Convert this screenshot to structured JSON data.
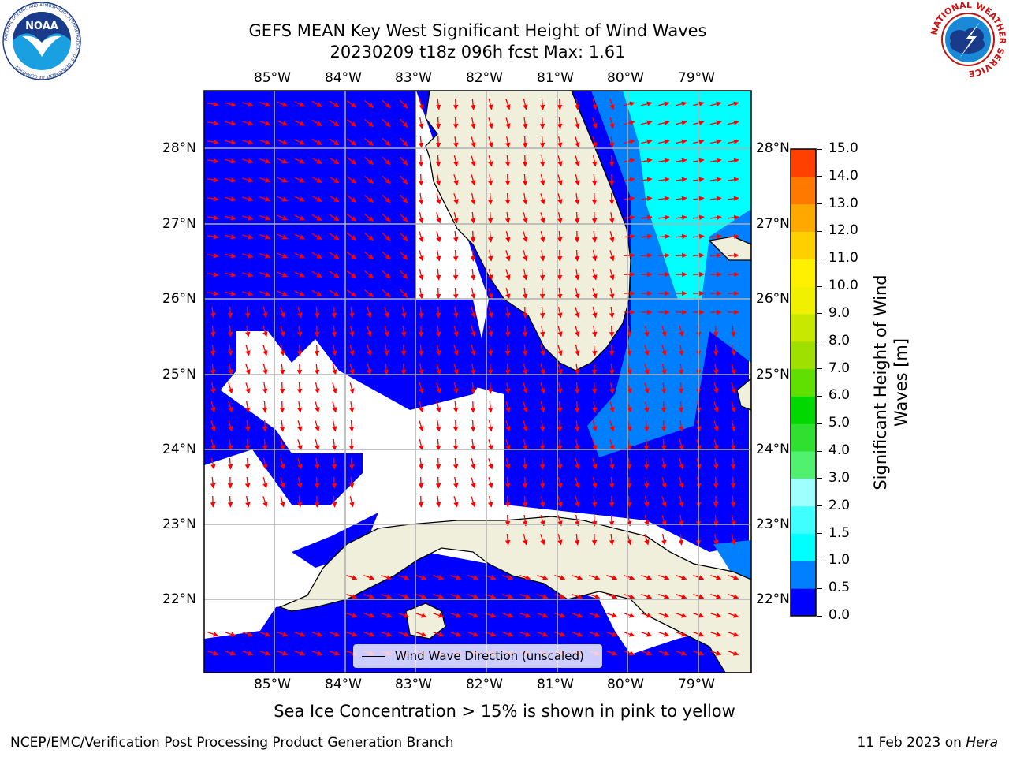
{
  "header": {
    "title_line1": "GEFS MEAN Key West Significant Height of Wind Waves",
    "title_line2": "20230209 t18z 096h fcst   Max: 1.61"
  },
  "map": {
    "lon_labels": [
      "85°W",
      "84°W",
      "83°W",
      "82°W",
      "81°W",
      "80°W",
      "79°W"
    ],
    "lat_labels": [
      "28°N",
      "27°N",
      "26°N",
      "25°N",
      "24°N",
      "23°N",
      "22°N"
    ],
    "legend_label": "Wind Wave Direction (unscaled)",
    "colors": {
      "land": "#efefdb",
      "arrow": "#ff0000",
      "grid": "#b0b0b0"
    }
  },
  "colorbar": {
    "label_line1": "Significant Height of Wind",
    "label_line2": "Waves [m]",
    "ticks": [
      "0.0",
      "0.5",
      "1.0",
      "1.5",
      "2.0",
      "3.0",
      "4.0",
      "5.0",
      "6.0",
      "7.0",
      "8.0",
      "9.0",
      "10.0",
      "11.0",
      "12.0",
      "13.0",
      "14.0",
      "15.0"
    ],
    "colors": [
      "#0000ff",
      "#0080ff",
      "#00ffff",
      "#40ffff",
      "#9fffff",
      "#50f070",
      "#30e030",
      "#00d800",
      "#60e000",
      "#a0e000",
      "#c8e800",
      "#f0f000",
      "#fff000",
      "#ffd000",
      "#ffa800",
      "#ff7800",
      "#ff4000",
      "#ff0000"
    ]
  },
  "footer": {
    "sea_ice_note": "Sea Ice Concentration > 15% is shown in pink to yellow",
    "credit_left": "NCEP/EMC/Verification Post Processing Product Generation Branch",
    "credit_right_date": "11 Feb 2023 on ",
    "credit_right_host": "Hera"
  },
  "logos": {
    "noaa_text": "NOAA",
    "noaa_ring_text": "NATIONAL OCEANIC AND ATMOSPHERIC ADMINISTRATION · U.S. DEPARTMENT OF COMMERCE",
    "nws_ring_text": "NATIONAL WEATHER SERVICE"
  }
}
